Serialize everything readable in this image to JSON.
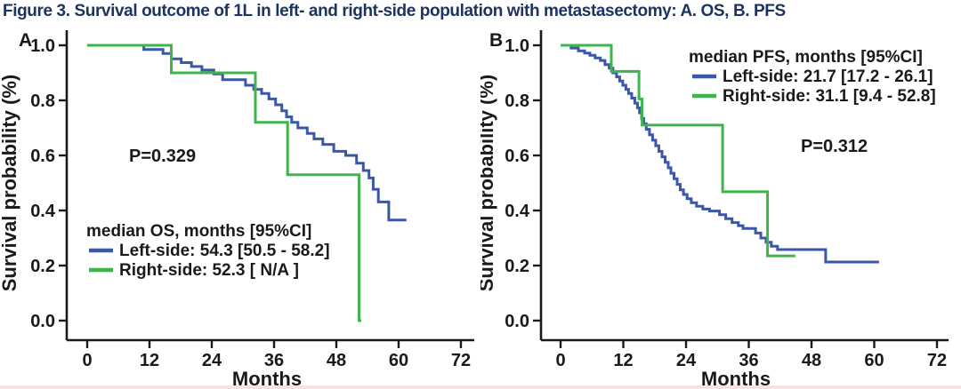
{
  "figure": {
    "title": "Figure 3. Survival outcome of 1L  in left- and right-side population with metastasectomy: A. OS, B. PFS"
  },
  "colors": {
    "left_side": "#3b58a8",
    "right_side": "#3db54b",
    "title_text": "#1d3461",
    "axis_text": "#1a1a1a",
    "bottom_strip": "#f6d7d9"
  },
  "chart_data": [
    {
      "type": "line",
      "subtype": "kaplan-meier-step",
      "panel_label": "A",
      "endpoint": "OS",
      "xlabel": "Months",
      "ylabel": "Survival probability (%)",
      "xlim": [
        0,
        72
      ],
      "xticks": [
        0,
        12,
        24,
        36,
        48,
        60,
        72
      ],
      "ylim": [
        0.0,
        1.0
      ],
      "yticks": [
        "1.0",
        "0.8",
        "0.6",
        "0.4",
        "0.2",
        "0.0"
      ],
      "grid": false,
      "p_value": "P=0.329",
      "legend": {
        "position": "lower-left",
        "header": "median OS, months [95%CI]",
        "entries": [
          {
            "name": "Left-side",
            "color_key": "left_side",
            "label": "Left-side: 54.3 [50.5 - 58.2]"
          },
          {
            "name": "Right-side",
            "color_key": "right_side",
            "label": "Right-side: 52.3 [ N/A ]"
          }
        ]
      },
      "series": [
        {
          "name": "Left-side",
          "color_key": "left_side",
          "steps": [
            [
              0,
              1.0
            ],
            [
              10.9,
              0.985
            ],
            [
              14.6,
              0.97
            ],
            [
              16.2,
              0.951
            ],
            [
              18.1,
              0.937
            ],
            [
              20.1,
              0.923
            ],
            [
              22.1,
              0.91
            ],
            [
              24.4,
              0.896
            ],
            [
              26.1,
              0.875
            ],
            [
              30.5,
              0.855
            ],
            [
              32.1,
              0.84
            ],
            [
              33.6,
              0.825
            ],
            [
              35.0,
              0.805
            ],
            [
              36.3,
              0.784
            ],
            [
              37.5,
              0.762
            ],
            [
              38.4,
              0.74
            ],
            [
              39.4,
              0.72
            ],
            [
              40.6,
              0.7
            ],
            [
              42.4,
              0.68
            ],
            [
              43.7,
              0.66
            ],
            [
              45.4,
              0.64
            ],
            [
              47.5,
              0.615
            ],
            [
              49.8,
              0.6
            ],
            [
              51.9,
              0.572
            ],
            [
              53.2,
              0.545
            ],
            [
              54.3,
              0.518
            ],
            [
              55.1,
              0.477
            ],
            [
              56.1,
              0.431
            ],
            [
              58.1,
              0.365
            ],
            [
              61.5,
              0.365
            ]
          ]
        },
        {
          "name": "Right-side",
          "color_key": "right_side",
          "steps": [
            [
              0,
              1.0
            ],
            [
              16.2,
              0.9
            ],
            [
              32.4,
              0.72
            ],
            [
              38.6,
              0.53
            ],
            [
              52.4,
              0.0
            ],
            [
              52.8,
              0.0
            ]
          ]
        }
      ]
    },
    {
      "type": "line",
      "subtype": "kaplan-meier-step",
      "panel_label": "B",
      "endpoint": "PFS",
      "xlabel": "Months",
      "ylabel": "Survival probability (%)",
      "xlim": [
        0,
        72
      ],
      "xticks": [
        0,
        12,
        24,
        36,
        48,
        60,
        72
      ],
      "ylim": [
        0.0,
        1.0
      ],
      "yticks": [
        "1.0",
        "0.8",
        "0.6",
        "0.4",
        "0.2",
        "0.0"
      ],
      "grid": false,
      "p_value": "P=0.312",
      "legend": {
        "position": "upper-right",
        "header": "median PFS, months [95%CI]",
        "entries": [
          {
            "name": "Left-side",
            "color_key": "left_side",
            "label": "Left-side: 21.7 [17.2 - 26.1]"
          },
          {
            "name": "Right-side",
            "color_key": "right_side",
            "label": "Right-side: 31.1 [9.4 - 52.8]"
          }
        ]
      },
      "series": [
        {
          "name": "Left-side",
          "color_key": "left_side",
          "steps": [
            [
              0.5,
              1.0
            ],
            [
              2.0,
              0.99
            ],
            [
              3.4,
              0.98
            ],
            [
              4.6,
              0.972
            ],
            [
              5.6,
              0.964
            ],
            [
              6.6,
              0.954
            ],
            [
              7.6,
              0.945
            ],
            [
              8.5,
              0.93
            ],
            [
              9.3,
              0.917
            ],
            [
              10.0,
              0.9
            ],
            [
              10.7,
              0.885
            ],
            [
              11.3,
              0.87
            ],
            [
              11.9,
              0.855
            ],
            [
              12.5,
              0.84
            ],
            [
              13.0,
              0.825
            ],
            [
              13.6,
              0.808
            ],
            [
              14.2,
              0.79
            ],
            [
              14.7,
              0.773
            ],
            [
              15.1,
              0.755
            ],
            [
              15.5,
              0.735
            ],
            [
              15.9,
              0.715
            ],
            [
              16.4,
              0.695
            ],
            [
              17.0,
              0.675
            ],
            [
              17.6,
              0.655
            ],
            [
              18.2,
              0.635
            ],
            [
              18.8,
              0.615
            ],
            [
              19.4,
              0.595
            ],
            [
              20.0,
              0.575
            ],
            [
              20.6,
              0.555
            ],
            [
              21.1,
              0.535
            ],
            [
              21.7,
              0.515
            ],
            [
              22.3,
              0.495
            ],
            [
              22.9,
              0.475
            ],
            [
              23.5,
              0.458
            ],
            [
              24.2,
              0.443
            ],
            [
              25.0,
              0.428
            ],
            [
              26.0,
              0.415
            ],
            [
              27.2,
              0.405
            ],
            [
              28.5,
              0.398
            ],
            [
              30.4,
              0.385
            ],
            [
              31.6,
              0.37
            ],
            [
              32.8,
              0.356
            ],
            [
              34.0,
              0.345
            ],
            [
              34.9,
              0.335
            ],
            [
              37.3,
              0.318
            ],
            [
              38.3,
              0.3
            ],
            [
              39.3,
              0.285
            ],
            [
              40.3,
              0.27
            ],
            [
              41.5,
              0.258
            ],
            [
              50.7,
              0.213
            ],
            [
              60.9,
              0.213
            ]
          ]
        },
        {
          "name": "Right-side",
          "color_key": "right_side",
          "steps": [
            [
              0,
              1.0
            ],
            [
              9.7,
              0.905
            ],
            [
              15.0,
              0.805
            ],
            [
              15.6,
              0.71
            ],
            [
              31.0,
              0.468
            ],
            [
              39.6,
              0.235
            ],
            [
              44.9,
              0.235
            ]
          ]
        }
      ]
    }
  ]
}
